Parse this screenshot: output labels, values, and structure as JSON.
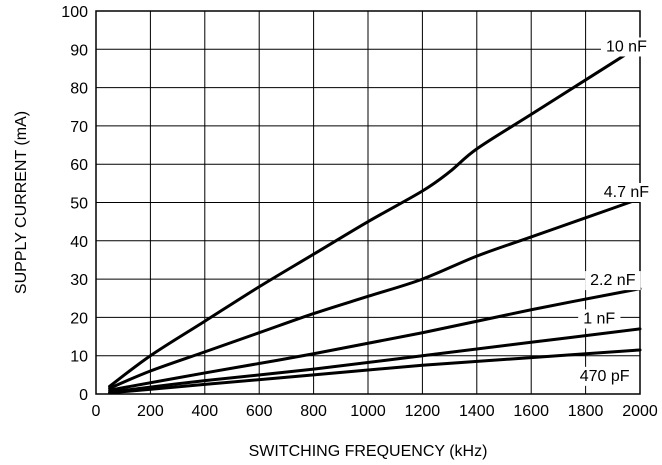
{
  "chart_data": {
    "type": "line",
    "title": "",
    "xlabel": "SWITCHING FREQUENCY (kHz)",
    "ylabel": "SUPPLY CURRENT (mA)",
    "xlim": [
      0,
      2000
    ],
    "ylim": [
      0,
      100
    ],
    "x_ticks": [
      0,
      200,
      400,
      600,
      800,
      1000,
      1200,
      1400,
      1600,
      1800,
      2000
    ],
    "y_ticks": [
      0,
      10,
      20,
      30,
      40,
      50,
      60,
      70,
      80,
      90,
      100
    ],
    "x_tick_labels": [
      "0",
      "200",
      "400",
      "600",
      "800",
      "1000",
      "1200",
      "1400",
      "1600",
      "1800",
      "2000"
    ],
    "y_tick_labels": [
      "0",
      "10",
      "20",
      "30",
      "40",
      "50",
      "60",
      "70",
      "80",
      "90",
      "100"
    ],
    "grid": true,
    "line_color": "#000000",
    "series": [
      {
        "name": "10 nF",
        "x": [
          50,
          200,
          400,
          600,
          800,
          1000,
          1200,
          1300,
          1400,
          1600,
          1800,
          2000
        ],
        "y": [
          2,
          10,
          19,
          28,
          36.5,
          45,
          53,
          58,
          64,
          73,
          82,
          91
        ],
        "label_at": [
          1950,
          91
        ]
      },
      {
        "name": "4.7 nF",
        "x": [
          50,
          200,
          400,
          600,
          800,
          1000,
          1200,
          1400,
          1600,
          1800,
          2000
        ],
        "y": [
          1.5,
          6,
          11,
          16,
          21,
          25.5,
          30,
          36,
          41,
          46,
          51
        ],
        "label_at": [
          1950,
          53
        ]
      },
      {
        "name": "2.2 nF",
        "x": [
          50,
          400,
          800,
          1200,
          1600,
          2000
        ],
        "y": [
          1,
          5.5,
          10.5,
          16,
          22,
          27.5
        ],
        "label_at": [
          1900,
          30
        ]
      },
      {
        "name": "1 nF",
        "x": [
          50,
          400,
          800,
          1200,
          1600,
          2000
        ],
        "y": [
          0.5,
          3.5,
          6.5,
          10,
          13.5,
          17
        ],
        "label_at": [
          1850,
          20
        ]
      },
      {
        "name": "470 pF",
        "x": [
          50,
          400,
          800,
          1200,
          1600,
          2000
        ],
        "y": [
          0.3,
          2.5,
          5,
          7.5,
          9.5,
          11.5
        ],
        "label_at": [
          1870,
          5
        ]
      }
    ]
  }
}
